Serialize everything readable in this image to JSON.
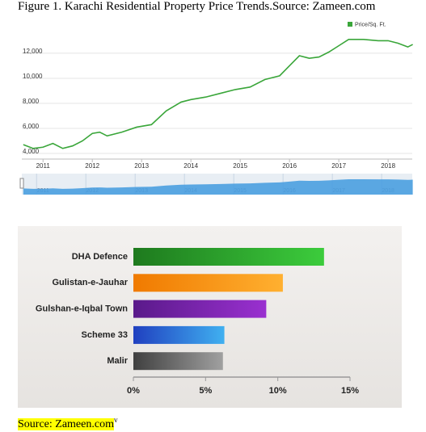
{
  "caption": "Figure 1. Karachi Residential Property Price Trends.Source: Zameen.com",
  "chart_data": [
    {
      "type": "line",
      "x": [
        2010.6,
        2010.8,
        2011.0,
        2011.2,
        2011.4,
        2011.6,
        2011.8,
        2012.0,
        2012.15,
        2012.3,
        2012.6,
        2012.9,
        2013.2,
        2013.5,
        2013.8,
        2014.0,
        2014.3,
        2014.6,
        2014.9,
        2015.2,
        2015.5,
        2015.8,
        2016.0,
        2016.2,
        2016.4,
        2016.6,
        2016.8,
        2017.0,
        2017.2,
        2017.5,
        2017.8,
        2018.0,
        2018.2,
        2018.4,
        2018.5
      ],
      "series": [
        {
          "name": "Price/Sq. Ft.",
          "color": "#3aa63a",
          "values": [
            4700,
            4400,
            4500,
            4800,
            4400,
            4600,
            5000,
            5600,
            5700,
            5400,
            5700,
            6100,
            6300,
            7400,
            8100,
            8300,
            8500,
            8800,
            9100,
            9300,
            9900,
            10200,
            11000,
            11800,
            11600,
            11700,
            12100,
            12600,
            13100,
            13100,
            13000,
            13000,
            12800,
            12500,
            12700
          ]
        }
      ],
      "xlim": [
        2010.57,
        2018.49
      ],
      "xticks": [
        2011,
        2012,
        2013,
        2014,
        2015,
        2016,
        2017,
        2018
      ],
      "ylim": [
        3550,
        13800
      ],
      "yticks": [
        {
          "value": 4000,
          "label": "4,000"
        },
        {
          "value": 6000,
          "label": "6,000"
        },
        {
          "value": 8000,
          "label": "8,000"
        },
        {
          "value": 10000,
          "label": "10,000"
        },
        {
          "value": 12000,
          "label": "12,000"
        }
      ],
      "grid": true,
      "legend": "top-right",
      "navigator_color": "#4a9fe0"
    },
    {
      "type": "hbar",
      "categories": [
        "DHA Defence",
        "Gulistan-e-Jauhar",
        "Gulshan-e-Iqbal Town",
        "Scheme 33",
        "Malir"
      ],
      "values": [
        13.2,
        10.35,
        9.2,
        6.3,
        6.2
      ],
      "colors": [
        [
          "#1e7a1e",
          "#3ccc3c"
        ],
        [
          "#f07a00",
          "#ffb030"
        ],
        [
          "#5a1a8a",
          "#9a30d0"
        ],
        [
          "#2040c0",
          "#40b0f0"
        ],
        [
          "#404040",
          "#a0a0a0"
        ]
      ],
      "xlim": [
        0,
        15
      ],
      "xticks": [
        {
          "value": 0,
          "label": "0%"
        },
        {
          "value": 5,
          "label": "5%"
        },
        {
          "value": 10,
          "label": "10%"
        },
        {
          "value": 15,
          "label": "15%"
        }
      ]
    }
  ],
  "source": {
    "text": "Source: Zameen.com",
    "mark": "v"
  }
}
